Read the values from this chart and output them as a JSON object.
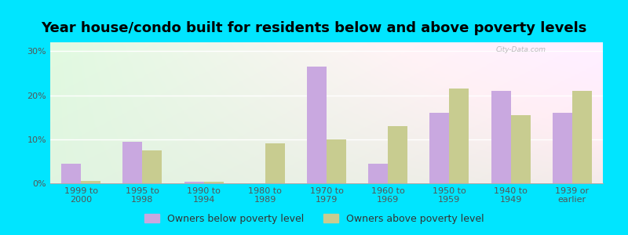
{
  "title": "Year house/condo built for residents below and above poverty levels",
  "categories": [
    "1999 to\n2000",
    "1995 to\n1998",
    "1990 to\n1994",
    "1980 to\n1989",
    "1970 to\n1979",
    "1960 to\n1969",
    "1950 to\n1959",
    "1940 to\n1949",
    "1939 or\nearlier"
  ],
  "below_poverty": [
    4.5,
    9.5,
    0.3,
    0.0,
    26.5,
    4.5,
    16.0,
    21.0,
    16.0
  ],
  "above_poverty": [
    0.5,
    7.5,
    0.4,
    9.0,
    10.0,
    13.0,
    21.5,
    15.5,
    21.0
  ],
  "below_color": "#c9a8e0",
  "above_color": "#c8cc90",
  "outer_background": "#00e5ff",
  "yticks": [
    0,
    10,
    20,
    30
  ],
  "ylim": [
    0,
    32
  ],
  "legend_below": "Owners below poverty level",
  "legend_above": "Owners above poverty level",
  "title_fontsize": 13,
  "tick_fontsize": 8,
  "legend_fontsize": 9,
  "bar_width": 0.32
}
